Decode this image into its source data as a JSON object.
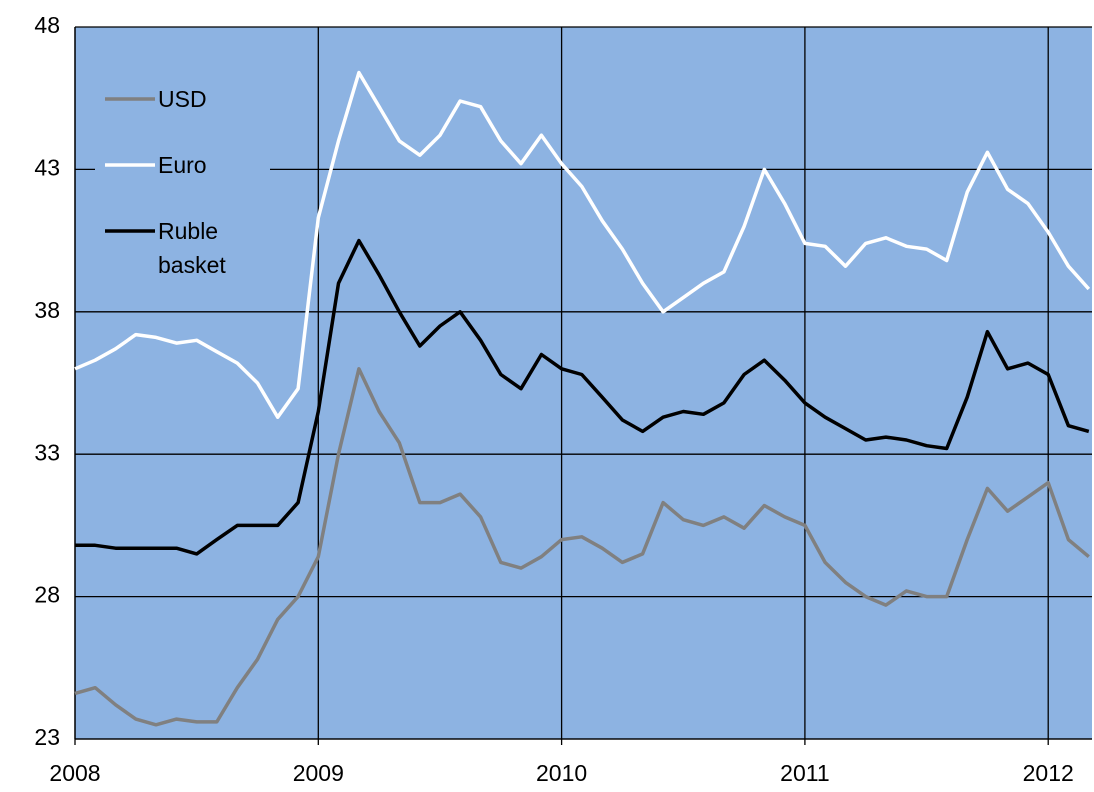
{
  "chart_data": {
    "type": "line",
    "x": [
      2008.0,
      2008.083,
      2008.167,
      2008.25,
      2008.333,
      2008.417,
      2008.5,
      2008.583,
      2008.667,
      2008.75,
      2008.833,
      2008.917,
      2009.0,
      2009.083,
      2009.167,
      2009.25,
      2009.333,
      2009.417,
      2009.5,
      2009.583,
      2009.667,
      2009.75,
      2009.833,
      2009.917,
      2010.0,
      2010.083,
      2010.167,
      2010.25,
      2010.333,
      2010.417,
      2010.5,
      2010.583,
      2010.667,
      2010.75,
      2010.833,
      2010.917,
      2011.0,
      2011.083,
      2011.167,
      2011.25,
      2011.333,
      2011.417,
      2011.5,
      2011.583,
      2011.667,
      2011.75,
      2011.833,
      2011.917,
      2012.0,
      2012.083,
      2012.167
    ],
    "series": [
      {
        "name": "USD",
        "color": "#808080",
        "values": [
          24.6,
          24.8,
          24.2,
          23.7,
          23.5,
          23.7,
          23.6,
          23.6,
          24.8,
          25.8,
          27.2,
          28.0,
          29.4,
          33.0,
          36.0,
          34.5,
          33.4,
          31.3,
          31.3,
          31.6,
          30.8,
          29.2,
          29.0,
          29.4,
          30.0,
          30.1,
          29.7,
          29.2,
          29.5,
          31.3,
          30.7,
          30.5,
          30.8,
          30.4,
          31.2,
          30.8,
          30.5,
          29.2,
          28.5,
          28.0,
          27.7,
          28.2,
          28.0,
          28.0,
          30.0,
          31.8,
          31.0,
          31.5,
          32.0,
          30.0,
          29.4
        ]
      },
      {
        "name": "Euro",
        "color": "#ffffff",
        "values": [
          36.0,
          36.3,
          36.7,
          37.2,
          37.1,
          36.9,
          37.0,
          36.6,
          36.2,
          35.5,
          34.3,
          35.3,
          41.3,
          44.0,
          46.4,
          45.2,
          44.0,
          43.5,
          44.2,
          45.4,
          45.2,
          44.0,
          43.2,
          44.2,
          43.2,
          42.4,
          41.2,
          40.2,
          39.0,
          38.0,
          38.5,
          39.0,
          39.4,
          41.0,
          43.0,
          41.8,
          40.4,
          40.3,
          39.6,
          40.4,
          40.6,
          40.3,
          40.2,
          39.8,
          42.2,
          43.6,
          42.3,
          41.8,
          40.8,
          39.6,
          38.8
        ]
      },
      {
        "name": "Ruble basket",
        "color": "#000000",
        "values": [
          29.8,
          29.8,
          29.7,
          29.7,
          29.7,
          29.7,
          29.5,
          30.0,
          30.5,
          30.5,
          30.5,
          31.3,
          34.5,
          39.0,
          40.5,
          39.3,
          38.0,
          36.8,
          37.5,
          38.0,
          37.0,
          35.8,
          35.3,
          36.5,
          36.0,
          35.8,
          35.0,
          34.2,
          33.8,
          34.3,
          34.5,
          34.4,
          34.8,
          35.8,
          36.3,
          35.6,
          34.8,
          34.3,
          33.9,
          33.5,
          33.6,
          33.5,
          33.3,
          33.2,
          35.0,
          37.3,
          36.0,
          36.2,
          35.8,
          34.0,
          33.8
        ]
      }
    ],
    "xlim": [
      2008,
      2012.18
    ],
    "xticks": [
      2008,
      2009,
      2010,
      2011,
      2012
    ],
    "ylim": [
      23,
      48
    ],
    "yticks": [
      23,
      28,
      33,
      38,
      43,
      48
    ],
    "grid": true,
    "background": "#8db3e2",
    "legend": "top-left"
  }
}
